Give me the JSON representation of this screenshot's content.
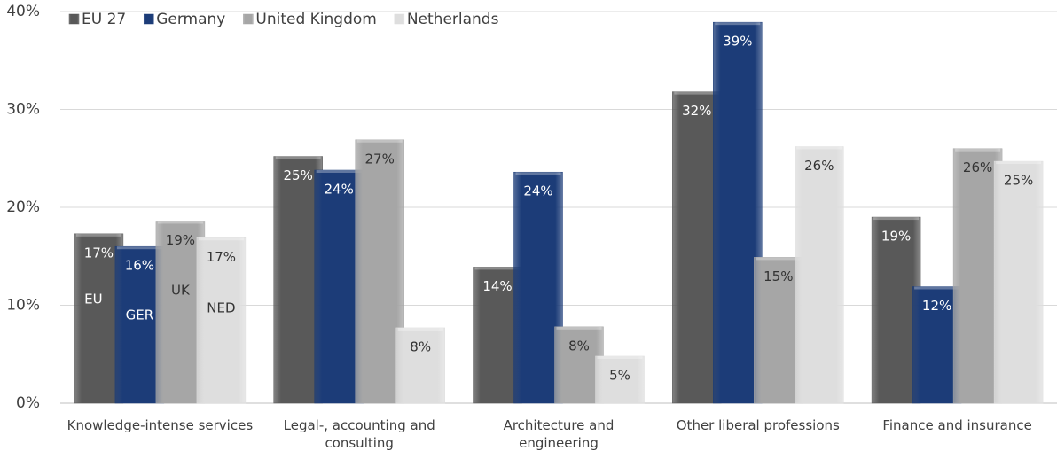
{
  "chart_data": {
    "type": "bar",
    "categories": [
      "Knowledge-intense services",
      "Legal-, accounting and consulting",
      "Architecture and engineering",
      "Other liberal professions",
      "Finance and insurance"
    ],
    "series": [
      {
        "name": "EU 27",
        "abbreviation": "EU",
        "color": "#595959",
        "label_color": "#ffffff",
        "values": [
          17.3,
          25.2,
          13.9,
          31.8,
          19.0
        ],
        "value_labels": [
          "17%",
          "25%",
          "14%",
          "32%",
          "19%"
        ]
      },
      {
        "name": "Germany",
        "abbreviation": "GER",
        "color": "#1c3c78",
        "label_color": "#ffffff",
        "values": [
          16.0,
          23.8,
          23.6,
          38.9,
          11.9
        ],
        "value_labels": [
          "16%",
          "24%",
          "24%",
          "39%",
          "12%"
        ]
      },
      {
        "name": "United Kingdom",
        "abbreviation": "UK",
        "color": "#a6a6a6",
        "label_color": "#333333",
        "values": [
          18.6,
          26.9,
          7.8,
          14.9,
          26.0
        ],
        "value_labels": [
          "19%",
          "27%",
          "8%",
          "15%",
          "26%"
        ]
      },
      {
        "name": "Netherlands",
        "abbreviation": "NED",
        "color": "#dedede",
        "label_color": "#333333",
        "values": [
          16.9,
          7.7,
          4.8,
          26.2,
          24.7
        ],
        "value_labels": [
          "17%",
          "8%",
          "5%",
          "26%",
          "25%"
        ]
      }
    ],
    "ylim": [
      0,
      40
    ],
    "yticks": [
      {
        "value": 0,
        "label": "0%"
      },
      {
        "value": 10,
        "label": "10%"
      },
      {
        "value": 20,
        "label": "20%"
      },
      {
        "value": 30,
        "label": "30%"
      },
      {
        "value": 40,
        "label": "40%"
      }
    ],
    "grid": true,
    "legend": "top-left"
  }
}
